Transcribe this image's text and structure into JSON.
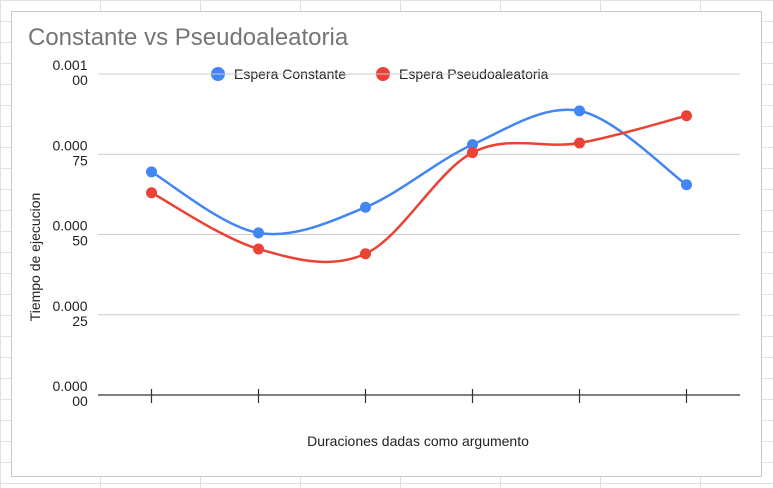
{
  "chart_data": {
    "type": "line",
    "title": "Constante vs Pseudoaleatoria",
    "xlabel": "Duraciones dadas como argumento",
    "ylabel": "Tiempo de ejecucion",
    "ylim": [
      0,
      0.001
    ],
    "yticks": [
      {
        "value": 0.001,
        "line1": "0.001",
        "line2": "00"
      },
      {
        "value": 0.00075,
        "line1": "0.000",
        "line2": "75"
      },
      {
        "value": 0.0005,
        "line1": "0.000",
        "line2": "50"
      },
      {
        "value": 0.00025,
        "line1": "0.000",
        "line2": "25"
      },
      {
        "value": 0,
        "line1": "0.000",
        "line2": "00"
      }
    ],
    "categories": [
      "",
      "",
      "",
      "",
      "",
      ""
    ],
    "grid": true,
    "smooth": true,
    "legend_position": "top",
    "series": [
      {
        "name": "Espera Constante",
        "color": "#4285f4",
        "values": [
          0.000695,
          0.000505,
          0.000585,
          0.00078,
          0.000885,
          0.000655
        ]
      },
      {
        "name": "Espera Pseudoaleatoria",
        "color": "#ea4335",
        "values": [
          0.00063,
          0.000455,
          0.00044,
          0.000755,
          0.000785,
          0.00087
        ]
      }
    ]
  }
}
